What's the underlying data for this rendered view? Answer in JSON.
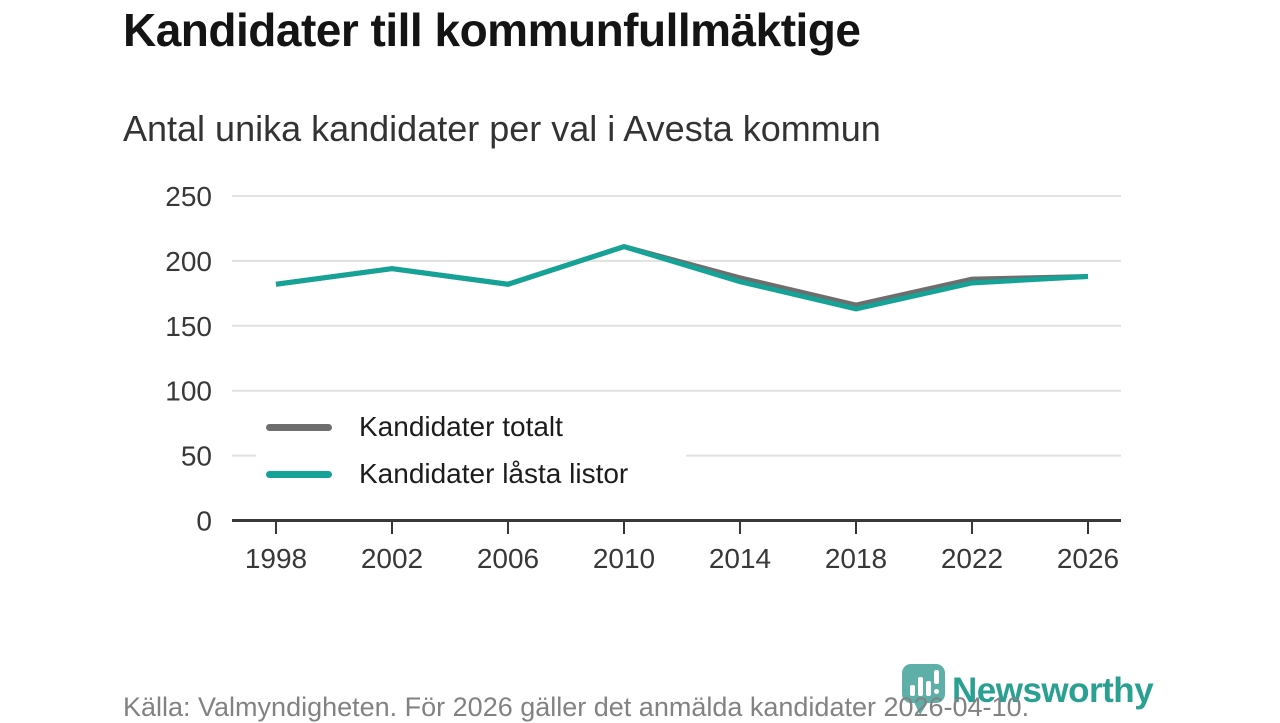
{
  "header": {
    "title": "Kandidater till kommunfullmäktige",
    "subtitle": "Antal unika kandidater per val i Avesta kommun"
  },
  "chart_data": {
    "type": "line",
    "title": "Kandidater till kommunfullmäktige",
    "subtitle": "Antal unika kandidater per val i Avesta kommun",
    "x": [
      1998,
      2002,
      2006,
      2010,
      2014,
      2018,
      2022,
      2026
    ],
    "series": [
      {
        "name": "Kandidater totalt",
        "color": "#6e6e6e",
        "values": [
          182,
          194,
          182,
          211,
          187,
          166,
          186,
          188
        ]
      },
      {
        "name": "Kandidater låsta listor",
        "color": "#14a396",
        "values": [
          182,
          194,
          182,
          211,
          184,
          163,
          183,
          188
        ]
      }
    ],
    "xlabel": "",
    "ylabel": "",
    "ylim": [
      0,
      250
    ],
    "yticks": [
      0,
      50,
      100,
      150,
      200,
      250
    ],
    "grid": "horizontal",
    "legend_position": "inside-left-middle",
    "axis_color": "#383838",
    "gridline_color": "#e1e1e1",
    "tick_label_color": "#383838"
  },
  "footer": {
    "source_text": "Källa: Valmyndigheten. För 2026 gäller det anmälda kandidater 2026-04-10.",
    "brand": {
      "name": "Newsworthy",
      "text_color": "#2aa093",
      "icon": "bar-chart-speech-bubble-icon",
      "icon_color": "#52aaa2"
    }
  }
}
